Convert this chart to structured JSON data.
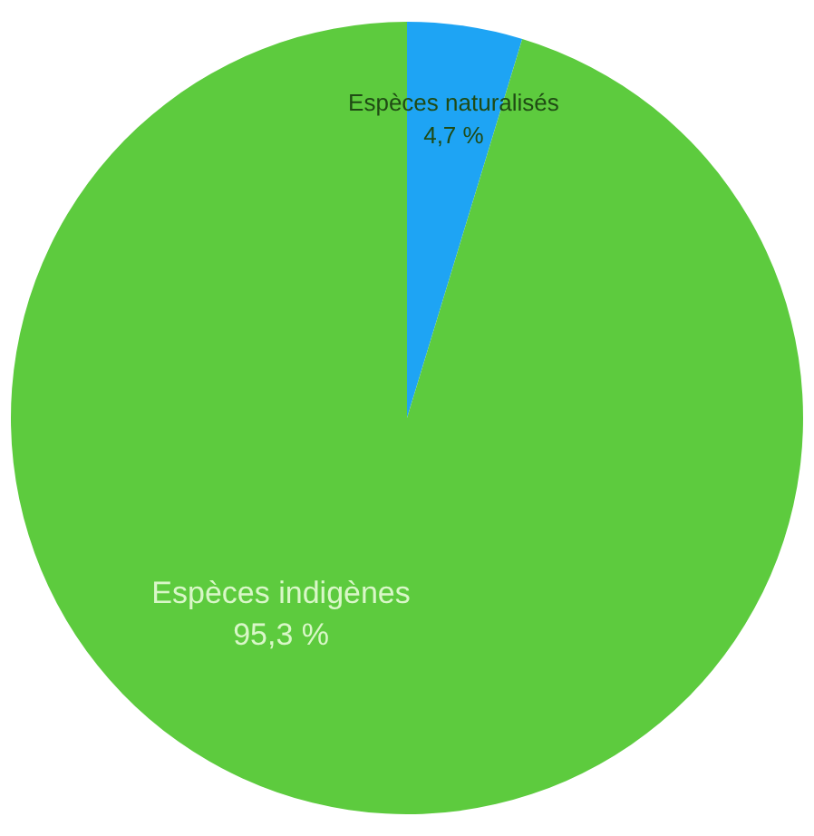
{
  "chart_data": {
    "type": "pie",
    "categories": [
      "Espèces naturalisés",
      "Espèces indigènes"
    ],
    "values": [
      4.7,
      95.3
    ],
    "colors": [
      "#1ea4f4",
      "#5dcb3e"
    ],
    "value_labels": [
      "4,7 %",
      "95,3 %"
    ]
  }
}
